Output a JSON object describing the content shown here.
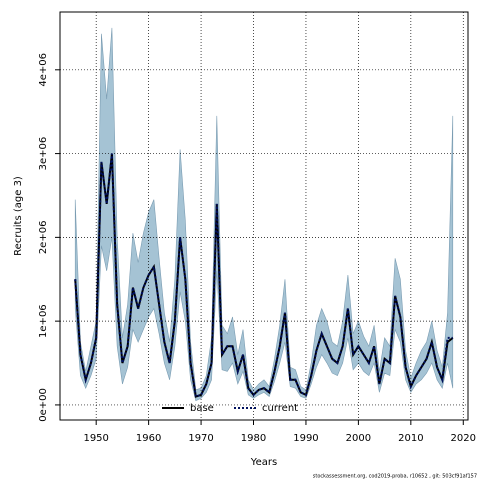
{
  "chart_data": {
    "type": "line",
    "x_label": "Years",
    "y_label": "Recruits (age 3)",
    "footer": "stockassessment.org, cod2019-proba, r10652 , git: 503cf91af157",
    "x": [
      1946,
      1947,
      1948,
      1949,
      1950,
      1951,
      1952,
      1953,
      1954,
      1955,
      1956,
      1957,
      1958,
      1959,
      1960,
      1961,
      1962,
      1963,
      1964,
      1965,
      1966,
      1967,
      1968,
      1969,
      1970,
      1971,
      1972,
      1973,
      1974,
      1975,
      1976,
      1977,
      1978,
      1979,
      1980,
      1981,
      1982,
      1983,
      1984,
      1985,
      1986,
      1987,
      1988,
      1989,
      1990,
      1991,
      1992,
      1993,
      1994,
      1995,
      1996,
      1997,
      1998,
      1999,
      2000,
      2001,
      2002,
      2003,
      2004,
      2005,
      2006,
      2007,
      2008,
      2009,
      2010,
      2011,
      2012,
      2013,
      2014,
      2015,
      2016,
      2017,
      2018
    ],
    "ribbon": {
      "color": "#a5c3d4",
      "edge": "#7a9cb2",
      "upper": [
        2450000.0,
        750000.0,
        400000.0,
        700000.0,
        1000000.0,
        4430000.0,
        3650000.0,
        4500000.0,
        2000000.0,
        800000.0,
        1200000.0,
        2050000.0,
        1700000.0,
        2050000.0,
        2300000.0,
        2450000.0,
        1750000.0,
        1100000.0,
        750000.0,
        1500000.0,
        3050000.0,
        2200000.0,
        750000.0,
        180000.0,
        200000.0,
        350000.0,
        800000.0,
        3450000.0,
        950000.0,
        850000.0,
        1050000.0,
        600000.0,
        900000.0,
        300000.0,
        180000.0,
        250000.0,
        300000.0,
        220000.0,
        550000.0,
        950000.0,
        1500000.0,
        450000.0,
        420000.0,
        220000.0,
        180000.0,
        500000.0,
        950000.0,
        1150000.0,
        1000000.0,
        750000.0,
        700000.0,
        1000000.0,
        1550000.0,
        850000.0,
        1000000.0,
        820000.0,
        700000.0,
        950000.0,
        400000.0,
        800000.0,
        700000.0,
        1750000.0,
        1500000.0,
        650000.0,
        320000.0,
        500000.0,
        650000.0,
        750000.0,
        1000000.0,
        650000.0,
        450000.0,
        1100000.0,
        3450000.0
      ],
      "lower": [
        1150000.0,
        350000.0,
        200000.0,
        350000.0,
        550000.0,
        1900000.0,
        1600000.0,
        2000000.0,
        700000.0,
        250000.0,
        450000.0,
        900000.0,
        750000.0,
        900000.0,
        1050000.0,
        1150000.0,
        850000.0,
        500000.0,
        300000.0,
        700000.0,
        1350000.0,
        1000000.0,
        300000.0,
        50000.0,
        80000.0,
        150000.0,
        300000.0,
        1600000.0,
        420000.0,
        400000.0,
        500000.0,
        250000.0,
        400000.0,
        120000.0,
        80000.0,
        120000.0,
        150000.0,
        100000.0,
        280000.0,
        500000.0,
        750000.0,
        220000.0,
        200000.0,
        100000.0,
        80000.0,
        250000.0,
        450000.0,
        600000.0,
        500000.0,
        380000.0,
        350000.0,
        500000.0,
        800000.0,
        420000.0,
        500000.0,
        400000.0,
        350000.0,
        500000.0,
        150000.0,
        380000.0,
        350000.0,
        900000.0,
        750000.0,
        300000.0,
        150000.0,
        250000.0,
        300000.0,
        380000.0,
        500000.0,
        300000.0,
        200000.0,
        500000.0,
        200000.0
      ]
    },
    "series": [
      {
        "name": "base",
        "color": "#000000",
        "dash": false,
        "values": [
          1500000.0,
          600000.0,
          300000.0,
          500000.0,
          800000.0,
          2900000.0,
          2400000.0,
          3000000.0,
          1200000.0,
          500000.0,
          700000.0,
          1400000.0,
          1150000.0,
          1400000.0,
          1550000.0,
          1650000.0,
          1200000.0,
          750000.0,
          500000.0,
          1000000.0,
          2000000.0,
          1500000.0,
          500000.0,
          100000.0,
          120000.0,
          250000.0,
          500000.0,
          2400000.0,
          600000.0,
          700000.0,
          700000.0,
          400000.0,
          600000.0,
          200000.0,
          120000.0,
          180000.0,
          200000.0,
          150000.0,
          400000.0,
          700000.0,
          1100000.0,
          300000.0,
          300000.0,
          150000.0,
          120000.0,
          350000.0,
          650000.0,
          850000.0,
          700000.0,
          550000.0,
          500000.0,
          700000.0,
          1150000.0,
          600000.0,
          700000.0,
          600000.0,
          500000.0,
          700000.0,
          250000.0,
          550000.0,
          500000.0,
          1300000.0,
          1050000.0,
          450000.0,
          220000.0,
          350000.0,
          450000.0,
          550000.0,
          750000.0,
          450000.0,
          300000.0,
          750000.0,
          800000.0
        ]
      },
      {
        "name": "current",
        "color": "#00105e",
        "dash": true,
        "values": [
          1500000.0,
          600000.0,
          300000.0,
          500000.0,
          800000.0,
          2900000.0,
          2400000.0,
          3000000.0,
          1200000.0,
          500000.0,
          700000.0,
          1400000.0,
          1150000.0,
          1400000.0,
          1550000.0,
          1650000.0,
          1200000.0,
          750000.0,
          500000.0,
          1000000.0,
          2000000.0,
          1500000.0,
          500000.0,
          100000.0,
          120000.0,
          250000.0,
          500000.0,
          2400000.0,
          600000.0,
          700000.0,
          700000.0,
          400000.0,
          600000.0,
          200000.0,
          120000.0,
          180000.0,
          200000.0,
          150000.0,
          400000.0,
          700000.0,
          1100000.0,
          300000.0,
          300000.0,
          150000.0,
          120000.0,
          350000.0,
          650000.0,
          850000.0,
          700000.0,
          550000.0,
          500000.0,
          700000.0,
          1150000.0,
          600000.0,
          700000.0,
          600000.0,
          500000.0,
          700000.0,
          250000.0,
          550000.0,
          500000.0,
          1300000.0,
          1050000.0,
          450000.0,
          220000.0,
          350000.0,
          450000.0,
          550000.0,
          750000.0,
          450000.0,
          300000.0,
          800000.0,
          800000.0
        ]
      }
    ],
    "xlim": [
      1943.1,
      2020.9
    ],
    "xticks": [
      1950,
      1960,
      1970,
      1980,
      1990,
      2000,
      2010,
      2020
    ],
    "ylim": [
      -180000,
      4690000
    ],
    "yticks": [
      {
        "value": 0,
        "label": "0e+00"
      },
      {
        "value": 1000000,
        "label": "1e+06"
      },
      {
        "value": 2000000,
        "label": "2e+06"
      },
      {
        "value": 3000000,
        "label": "3e+06"
      },
      {
        "value": 4000000,
        "label": "4e+06"
      }
    ],
    "grid": true,
    "legend": "bottom"
  }
}
